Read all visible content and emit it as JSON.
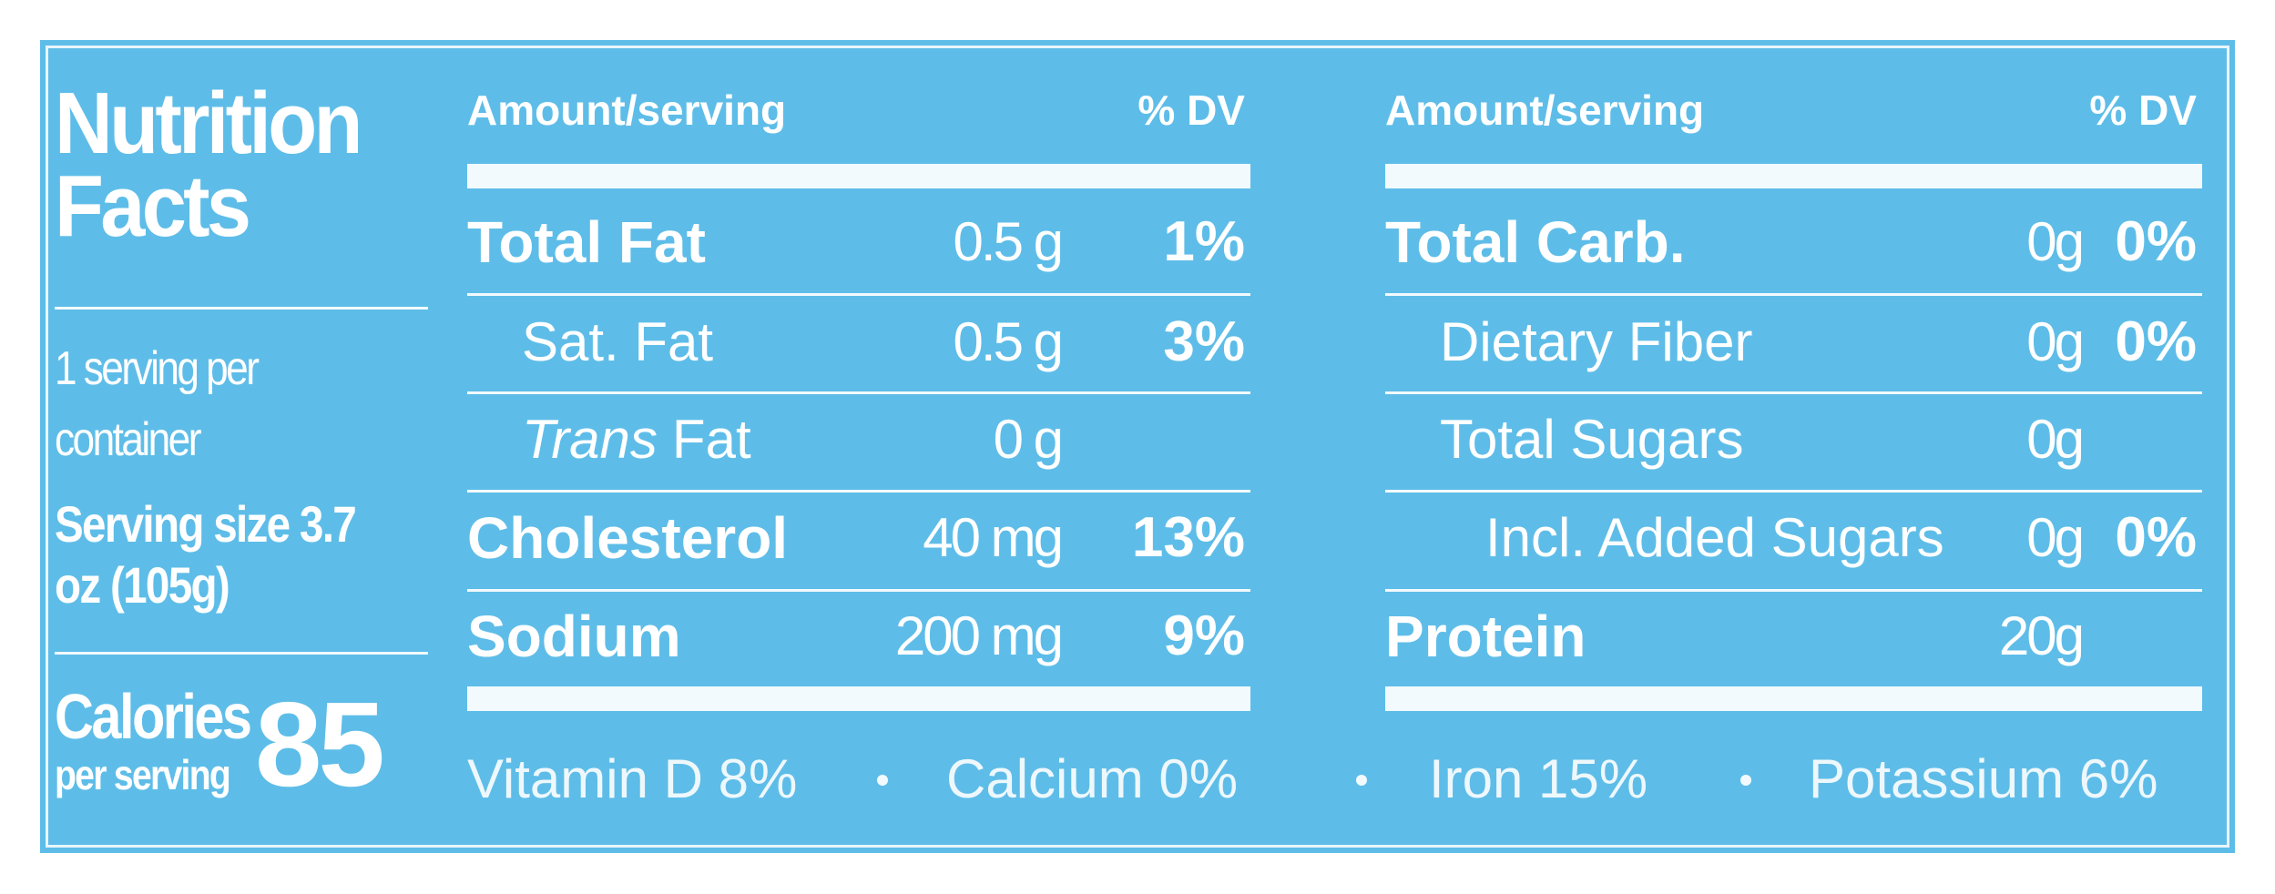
{
  "label": {
    "title": "Nutrition Facts",
    "servings": "1 serving per container",
    "serving_size": "Serving size 3.7 oz (105g)",
    "calories": {
      "label": "Calories",
      "sublabel": "per serving",
      "value": "85"
    },
    "left_table": {
      "header": {
        "amount": "Amount/serving",
        "dv": "% DV"
      },
      "rows": [
        {
          "name": "Total Fat",
          "amount": "0.5 g",
          "dv": "1%",
          "bold": true
        },
        {
          "name": "Sat. Fat",
          "amount": "0.5 g",
          "dv": "3%",
          "bold": false
        },
        {
          "name_italic": "Trans",
          "name": "Fat",
          "amount": "0 g",
          "bold": false
        },
        {
          "name": "Cholesterol",
          "amount": "40 mg",
          "dv": "13%",
          "bold": true
        },
        {
          "name": "Sodium",
          "amount": "200 mg",
          "dv": "9%",
          "bold": true
        }
      ]
    },
    "right_table": {
      "header": {
        "amount": "Amount/serving",
        "dv": "% DV"
      },
      "rows": [
        {
          "name": "Total Carb.",
          "amount": "0g",
          "dv": "0%",
          "bold": true
        },
        {
          "name": "Dietary Fiber",
          "amount": "0g",
          "dv": "0%",
          "bold": false
        },
        {
          "name": "Total Sugars",
          "amount": "0g",
          "bold": false
        },
        {
          "name": "Incl. Added Sugars",
          "amount": "0g",
          "dv": "0%",
          "bold": false,
          "indent": 2
        },
        {
          "name": "Protein",
          "amount": "20g",
          "bold": true
        }
      ]
    },
    "footer": [
      "Vitamin D 8%",
      "Calcium 0%",
      "Iron 15%",
      "Potassium 6%"
    ]
  }
}
